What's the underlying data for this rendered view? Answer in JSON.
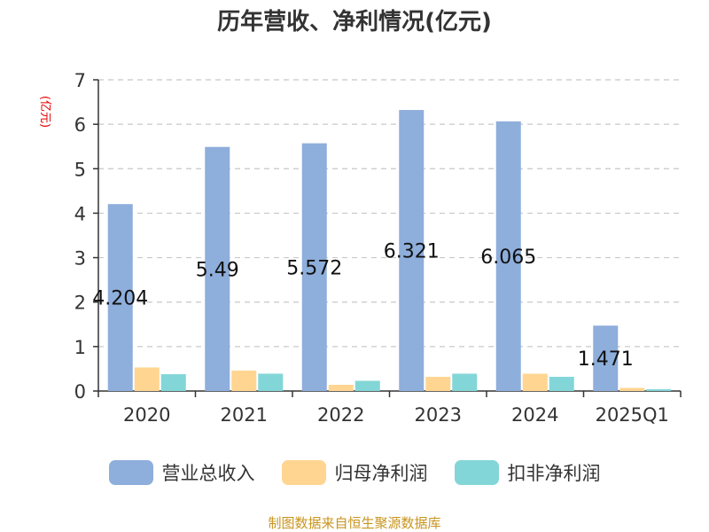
{
  "chart_data": {
    "type": "bar",
    "title": "历年营收、净利情况(亿元)",
    "y_unit": "(亿元)",
    "categories": [
      "2020",
      "2021",
      "2022",
      "2023",
      "2024",
      "2025Q1"
    ],
    "series": [
      {
        "name": "营业总收入",
        "color": "#8eaedb",
        "values": [
          4.204,
          5.49,
          5.572,
          6.321,
          6.065,
          1.471
        ]
      },
      {
        "name": "归母净利润",
        "color": "#ffd591",
        "values": [
          0.53,
          0.46,
          0.14,
          0.32,
          0.39,
          0.07
        ]
      },
      {
        "name": "扣非净利润",
        "color": "#83d6d8",
        "values": [
          0.38,
          0.39,
          0.23,
          0.39,
          0.32,
          0.04
        ]
      }
    ],
    "data_labels": [
      "4.204",
      "5.49",
      "5.572",
      "6.321",
      "6.065",
      "1.471"
    ],
    "ylim": [
      0,
      7
    ],
    "yticks": [
      "0",
      "1",
      "2",
      "3",
      "4",
      "5",
      "6",
      "7"
    ],
    "grid": true,
    "legend_position": "bottom"
  },
  "source": "制图数据来自恒生聚源数据库"
}
